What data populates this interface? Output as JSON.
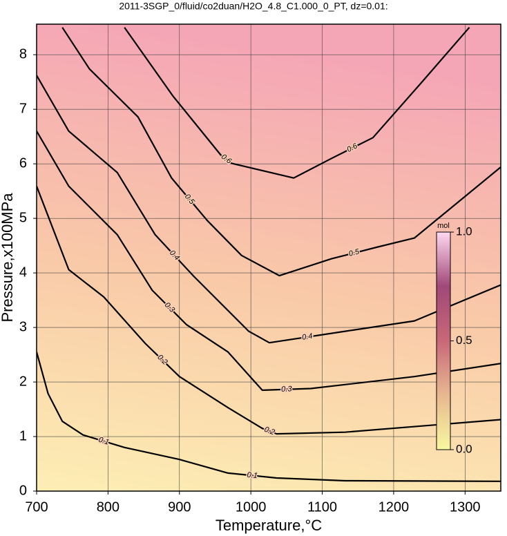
{
  "chart_data": {
    "type": "contour",
    "title": "2011-3SGP_0/fluid/co2duan/H2O_4.8_C1.000_0_PT, dz=0.01:",
    "x_label": "Temperature,°C",
    "y_label": "Pressure,x100MPa",
    "xlim": [
      700,
      1350
    ],
    "ylim": [
      0,
      8.56
    ],
    "xticks": [
      700,
      800,
      900,
      1000,
      1100,
      1200,
      1300
    ],
    "yticks": [
      0,
      1,
      2,
      3,
      4,
      5,
      6,
      7,
      8
    ],
    "grid": true,
    "background": [
      "#fdeeb4",
      "#f9c9a8",
      "#f5a6b6"
    ],
    "line_color": "#000000",
    "contours": [
      {
        "level": 0.1,
        "x": [
          700,
          716,
          736,
          765,
          823,
          900,
          968,
          1036,
          1132,
          1350
        ],
        "y": [
          2.55,
          1.79,
          1.28,
          1.03,
          0.8,
          0.58,
          0.33,
          0.24,
          0.19,
          0.18
        ]
      },
      {
        "level": 0.2,
        "x": [
          700,
          745,
          794,
          852,
          900,
          968,
          1016,
          1036,
          1132,
          1350
        ],
        "y": [
          5.59,
          4.06,
          3.56,
          2.71,
          2.1,
          1.53,
          1.15,
          1.05,
          1.08,
          1.31
        ]
      },
      {
        "level": 0.3,
        "x": [
          700,
          745,
          813,
          862,
          910,
          968,
          1016,
          1084,
          1229,
          1350
        ],
        "y": [
          6.6,
          5.59,
          4.7,
          3.68,
          3.05,
          2.55,
          1.85,
          1.88,
          2.1,
          2.34
        ]
      },
      {
        "level": 0.4,
        "x": [
          700,
          745,
          813,
          866,
          920,
          997,
          1026,
          1132,
          1229,
          1350
        ],
        "y": [
          7.62,
          6.6,
          5.84,
          4.7,
          3.94,
          2.93,
          2.72,
          2.93,
          3.12,
          3.78
        ]
      },
      {
        "level": 0.5,
        "x": [
          736,
          774,
          842,
          889,
          939,
          987,
          1040,
          1113,
          1176,
          1229,
          1350
        ],
        "y": [
          8.5,
          7.74,
          6.86,
          5.74,
          4.96,
          4.32,
          3.95,
          4.26,
          4.47,
          4.64,
          5.94
        ]
      },
      {
        "level": 0.6,
        "x": [
          823,
          891,
          958,
          973,
          1060,
          1113,
          1171,
          1239,
          1306
        ],
        "y": [
          8.5,
          7.24,
          6.16,
          6.01,
          5.74,
          6.1,
          6.48,
          7.49,
          8.5
        ]
      }
    ],
    "colorbar": {
      "label": "mol",
      "lim": [
        0,
        1
      ],
      "ticks": [
        {
          "value": 0,
          "label": "0.0"
        },
        {
          "value": 0.5,
          "label": "0.5"
        },
        {
          "value": 1,
          "label": "1.0"
        }
      ],
      "colors": [
        "#f8f8a0",
        "#e8b890",
        "#c86878",
        "#a04878",
        "#ffd8f0"
      ]
    }
  }
}
